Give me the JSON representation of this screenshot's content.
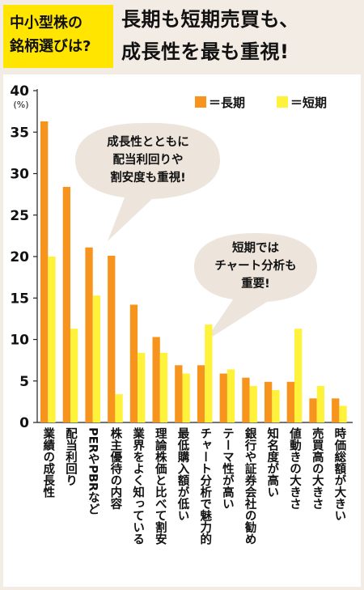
{
  "header": {
    "tag_lines": [
      "中小型株の",
      "銘柄選びは?"
    ],
    "headline_lines": [
      "長期も短期売買も、",
      "成長性を最も重視!"
    ]
  },
  "legend": [
    {
      "label": "＝長期",
      "color": "#f7941d"
    },
    {
      "label": "＝短期",
      "color": "#fff23a"
    }
  ],
  "callouts": [
    {
      "lines": [
        "成長性とともに",
        "配当利回りや",
        "割安度も重視!"
      ]
    },
    {
      "lines": [
        "短期では",
        "チャート分析も",
        "重要!"
      ]
    }
  ],
  "chart_data": {
    "type": "bar",
    "ylabel": "(%)",
    "ylim": [
      0,
      40
    ],
    "yticks": [
      0,
      5,
      10,
      15,
      20,
      25,
      30,
      35,
      40
    ],
    "grid": false,
    "legend_position": "top-right",
    "categories": [
      "業績の成長性",
      "配当利回り",
      "PERやPBRなど",
      "株主優待の内容",
      "業界をよく知っている",
      "理論株価と比べて割安",
      "最低購入額が低い",
      "チャート分析で魅力的",
      "テーマ性が高い",
      "銀行や証券会社の勧め",
      "知名度が高い",
      "値動きの大きさ",
      "売買高の大きさ",
      "時価総額が大きい"
    ],
    "series": [
      {
        "name": "長期",
        "values": [
          36.3,
          28.4,
          21.1,
          20.1,
          14.2,
          10.3,
          6.9,
          6.9,
          5.9,
          5.4,
          4.9,
          4.9,
          2.9,
          2.9
        ]
      },
      {
        "name": "短期",
        "values": [
          20.0,
          11.3,
          15.3,
          3.4,
          8.4,
          8.4,
          5.9,
          11.8,
          6.4,
          4.4,
          3.9,
          11.3,
          4.4,
          2.0
        ]
      }
    ]
  }
}
